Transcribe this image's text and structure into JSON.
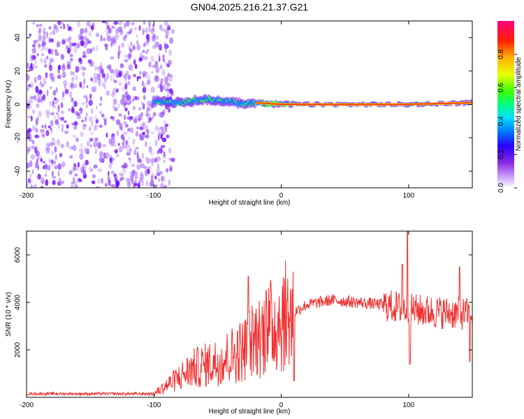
{
  "chart_data": [
    {
      "type": "heatmap",
      "title": "GN04.2025.216.21.37.G21",
      "xlabel": "Height of straight line (km)",
      "ylabel": "Frequency (Hz)",
      "xlim": [
        -200,
        150
      ],
      "ylim": [
        -50,
        50
      ],
      "x_ticks": [
        "-200",
        "-100",
        "0",
        "100"
      ],
      "x_tick_values": [
        -200,
        -100,
        0,
        100
      ],
      "y_ticks": [
        "-40",
        "-20",
        "0",
        "20",
        "40"
      ],
      "y_tick_values": [
        -40,
        -20,
        0,
        20,
        40
      ],
      "colorbar": {
        "label": "Normalized spectral amplitude",
        "range": [
          0,
          1
        ],
        "ticks": [
          "0.0",
          "0.2",
          "0.4",
          "0.6",
          "0.8"
        ],
        "tick_values": [
          0.0,
          0.2,
          0.4,
          0.6,
          0.8
        ],
        "colormap": [
          "#ffffff",
          "#b27dff",
          "#6a00ff",
          "#0000ff",
          "#00c8ff",
          "#00ff80",
          "#7fff00",
          "#ffff00",
          "#ff8000",
          "#ff0000",
          "#ff0080"
        ]
      },
      "ridge": {
        "description_points": [
          {
            "x": -100,
            "y": 2
          },
          {
            "x": -80,
            "y": 1
          },
          {
            "x": -60,
            "y": 3
          },
          {
            "x": -40,
            "y": 2
          },
          {
            "x": -30,
            "y": 0
          },
          {
            "x": -20,
            "y": 1
          },
          {
            "x": 0,
            "y": 0
          },
          {
            "x": 50,
            "y": 0
          },
          {
            "x": 100,
            "y": 0
          },
          {
            "x": 150,
            "y": 1
          }
        ]
      },
      "noise_region_x": [
        -200,
        -90
      ],
      "grid": false
    },
    {
      "type": "line",
      "xlabel": "Height of straight line (km)",
      "ylabel": "SNR (10 * v/v)",
      "xlim": [
        -200,
        150
      ],
      "ylim": [
        0,
        7000
      ],
      "x_ticks": [
        "-200",
        "-100",
        "0",
        "100"
      ],
      "x_tick_values": [
        -200,
        -100,
        0,
        100
      ],
      "y_ticks": [
        "2000",
        "4000",
        "6000"
      ],
      "y_tick_values": [
        2000,
        4000,
        6000
      ],
      "line_color": "#ef3030",
      "envelope": [
        {
          "x": -200,
          "y": 150
        },
        {
          "x": -100,
          "y": 150
        },
        {
          "x": -90,
          "y": 500
        },
        {
          "x": -70,
          "y": 1200
        },
        {
          "x": -50,
          "y": 1500
        },
        {
          "x": -30,
          "y": 2000
        },
        {
          "x": -20,
          "y": 2500
        },
        {
          "x": -10,
          "y": 2900
        },
        {
          "x": 0,
          "y": 3300
        },
        {
          "x": 20,
          "y": 3900
        },
        {
          "x": 40,
          "y": 4100
        },
        {
          "x": 60,
          "y": 4000
        },
        {
          "x": 80,
          "y": 3900
        },
        {
          "x": 100,
          "y": 3700
        },
        {
          "x": 120,
          "y": 3600
        },
        {
          "x": 150,
          "y": 3500
        }
      ],
      "spikes": [
        {
          "x": -26,
          "y": 5100
        },
        {
          "x": -12,
          "y": 4500
        },
        {
          "x": 10,
          "y": 700
        },
        {
          "x": 95,
          "y": 5600
        },
        {
          "x": 99,
          "y": 7000
        },
        {
          "x": 101,
          "y": 1400
        },
        {
          "x": 140,
          "y": 5500
        },
        {
          "x": 148,
          "y": 1500
        }
      ],
      "grid": false
    }
  ]
}
